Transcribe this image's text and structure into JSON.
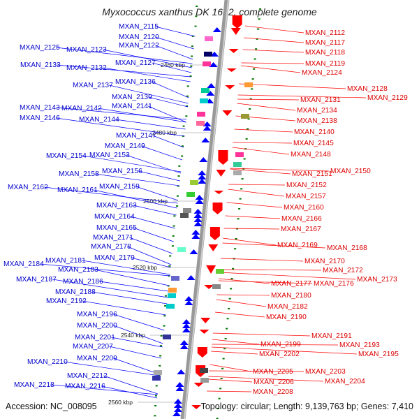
{
  "title": "Myxococcus xanthus DK 1622, complete genome",
  "footer": {
    "accession": "Accession: NC_008095",
    "summary": "Topology: circular; Length: 9,139,763 bp; Genes: 7,410"
  },
  "colors": {
    "left_label": "#0000cc",
    "right_label": "#dd0000",
    "left_arrow": "#0000ff",
    "right_arrow": "#ff0000",
    "axis": "#999999",
    "tick": "#007700"
  },
  "scale_labels": [
    "2460 kbp",
    "2480 kbp",
    "2500 kbp",
    "2520 kbp",
    "2540 kbp",
    "2560 kbp"
  ],
  "left_genes": [
    "MXAN_2115",
    "MXAN_2120",
    "MXAN_2122",
    "MXAN_2125",
    "MXAN_2123",
    "MXAN_2127",
    "MXAN_2133",
    "MXAN_2132",
    "MXAN_2136",
    "MXAN_2137",
    "MXAN_2139",
    "MXAN_2143",
    "MXAN_2142",
    "MXAN_2141",
    "MXAN_2146",
    "MXAN_2144",
    "MXAN_2147",
    "MXAN_2149",
    "MXAN_2154",
    "MXAN_2153",
    "MXAN_2156",
    "MXAN_2158",
    "MXAN_2159",
    "MXAN_2162",
    "MXAN_2161",
    "MXAN_2163",
    "MXAN_2164",
    "MXAN_2165",
    "MXAN_2171",
    "MXAN_2178",
    "MXAN_2179",
    "MXAN_2184",
    "MXAN_2181",
    "MXAN_2183",
    "MXAN_2187",
    "MXAN_2186",
    "MXAN_2188",
    "MXAN_2192",
    "MXAN_2196",
    "MXAN_2200",
    "MXAN_2201",
    "MXAN_2207",
    "MXAN_2210",
    "MXAN_2209",
    "MXAN_2212",
    "MXAN_2218",
    "MXAN_2216"
  ],
  "right_genes": [
    "MXAN_2112",
    "MXAN_2117",
    "MXAN_2118",
    "MXAN_2119",
    "MXAN_2124",
    "MXAN_2128",
    "MXAN_2129",
    "MXAN_2131",
    "MXAN_2134",
    "MXAN_2138",
    "MXAN_2140",
    "MXAN_2145",
    "MXAN_2148",
    "MXAN_2151",
    "MXAN_2150",
    "MXAN_2152",
    "MXAN_2157",
    "MXAN_2160",
    "MXAN_2166",
    "MXAN_2167",
    "MXAN_2169",
    "MXAN_2168",
    "MXAN_2170",
    "MXAN_2172",
    "MXAN_2173",
    "MXAN_2177",
    "MXAN_2176",
    "MXAN_2180",
    "MXAN_2182",
    "MXAN_2190",
    "MXAN_2191",
    "MXAN_2193",
    "MXAN_2195",
    "MXAN_2199",
    "MXAN_2202",
    "MXAN_2203",
    "MXAN_2205",
    "MXAN_2204",
    "MXAN_2206",
    "MXAN_2208"
  ]
}
